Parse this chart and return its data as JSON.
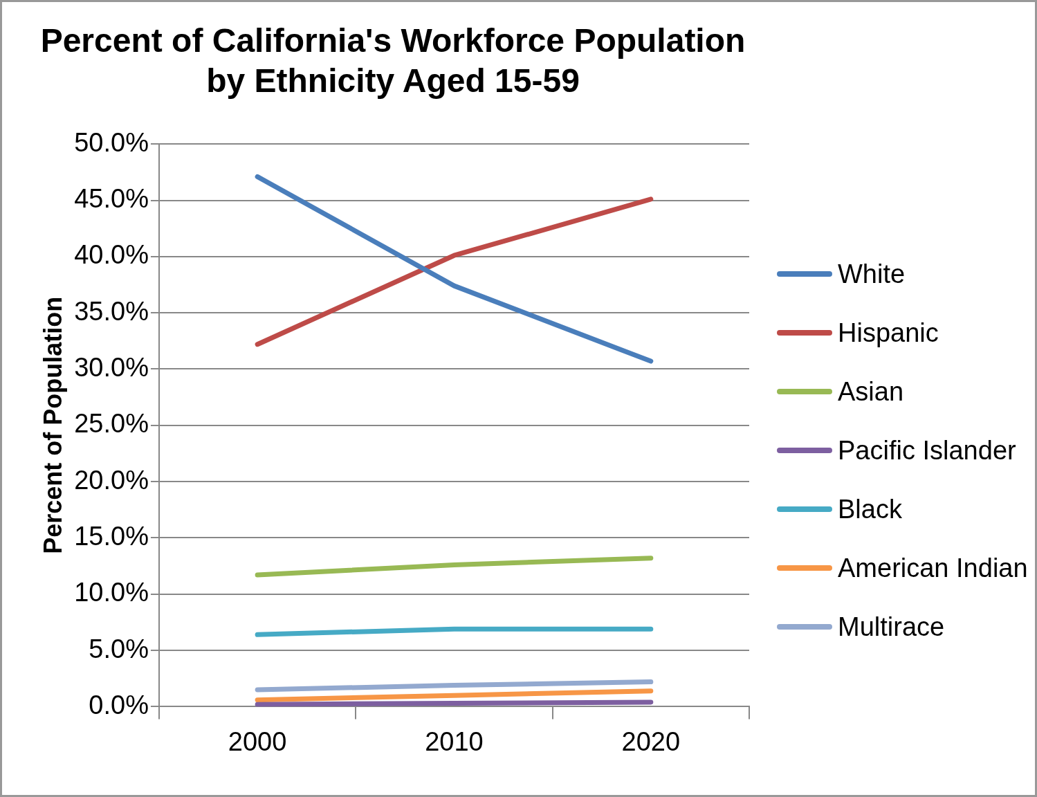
{
  "chart_data": {
    "type": "line",
    "title": "Percent of California's Workforce Population by Ethnicity Aged 15-59",
    "ylabel": "Percent of Population",
    "categories": [
      "2000",
      "2010",
      "2020"
    ],
    "series": [
      {
        "name": "White",
        "color": "#4a7ebb",
        "values": [
          47.1,
          37.4,
          30.7
        ]
      },
      {
        "name": "Hispanic",
        "color": "#be4b48",
        "values": [
          32.2,
          40.1,
          45.1
        ]
      },
      {
        "name": "Asian",
        "color": "#98b954",
        "values": [
          11.7,
          12.6,
          13.2
        ]
      },
      {
        "name": "Pacific Islander",
        "color": "#7d5fa0",
        "values": [
          0.2,
          0.3,
          0.4
        ]
      },
      {
        "name": "Black",
        "color": "#46aac5",
        "values": [
          6.4,
          6.9,
          6.9
        ]
      },
      {
        "name": "American Indian",
        "color": "#f79646",
        "values": [
          0.6,
          1.0,
          1.4
        ]
      },
      {
        "name": "Multirace",
        "color": "#93a9cf",
        "values": [
          1.5,
          1.9,
          2.2
        ]
      }
    ],
    "ylim": [
      0,
      50
    ],
    "yticks": [
      {
        "value": 0,
        "label": "0.0%"
      },
      {
        "value": 5,
        "label": "5.0%"
      },
      {
        "value": 10,
        "label": "10.0%"
      },
      {
        "value": 15,
        "label": "15.0%"
      },
      {
        "value": 20,
        "label": "20.0%"
      },
      {
        "value": 25,
        "label": "25.0%"
      },
      {
        "value": 30,
        "label": "30.0%"
      },
      {
        "value": 35,
        "label": "35.0%"
      },
      {
        "value": 40,
        "label": "40.0%"
      },
      {
        "value": 45,
        "label": "45.0%"
      },
      {
        "value": 50,
        "label": "50.0%"
      }
    ],
    "grid": "y",
    "legend": "right",
    "marker": "none",
    "line_style": "solid"
  }
}
